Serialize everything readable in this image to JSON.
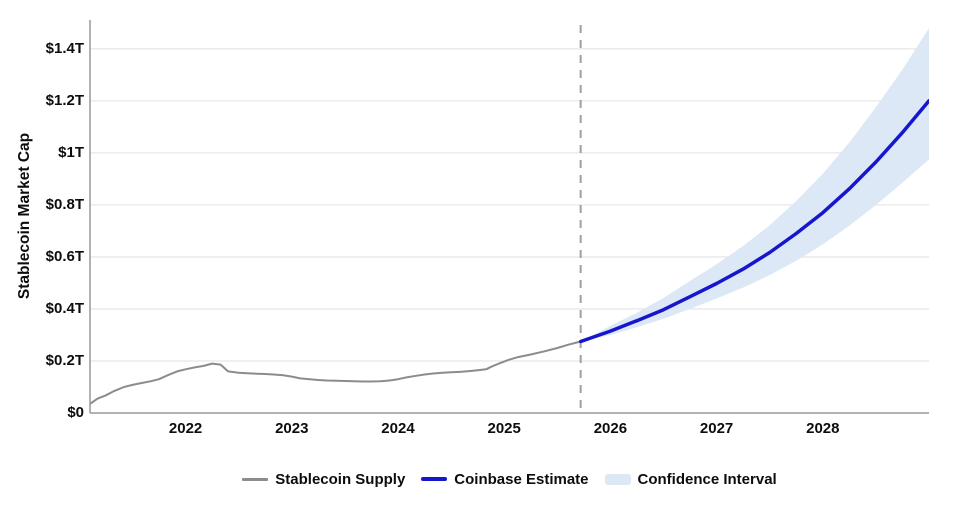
{
  "chart_data": {
    "type": "line",
    "title": "",
    "xlabel": "",
    "ylabel": "Stablecoin Market Cap",
    "units": "trillions USD",
    "grid": true,
    "legend_position": "bottom",
    "x_range": [
      2021.1,
      2029.0
    ],
    "y_range": [
      0,
      1.53
    ],
    "forecast_divider_x": 2025.72,
    "x_ticks": [
      {
        "value": 2022,
        "label": "2022"
      },
      {
        "value": 2023,
        "label": "2023"
      },
      {
        "value": 2024,
        "label": "2024"
      },
      {
        "value": 2025,
        "label": "2025"
      },
      {
        "value": 2026,
        "label": "2026"
      },
      {
        "value": 2027,
        "label": "2027"
      },
      {
        "value": 2028,
        "label": "2028"
      }
    ],
    "y_ticks": [
      {
        "value": 0.0,
        "label": "$0"
      },
      {
        "value": 0.2,
        "label": "$0.2T"
      },
      {
        "value": 0.4,
        "label": "$0.4T"
      },
      {
        "value": 0.6,
        "label": "$0.6T"
      },
      {
        "value": 0.8,
        "label": "$0.8T"
      },
      {
        "value": 1.0,
        "label": "$1T"
      },
      {
        "value": 1.2,
        "label": "$1.2T"
      },
      {
        "value": 1.4,
        "label": "$1.4T"
      }
    ],
    "series": [
      {
        "name": "Stablecoin Supply",
        "kind": "history-line",
        "color": "#8c8c8c",
        "width": 2,
        "x": [
          2021.1,
          2021.17,
          2021.25,
          2021.33,
          2021.42,
          2021.5,
          2021.58,
          2021.67,
          2021.75,
          2021.83,
          2021.92,
          2022.0,
          2022.08,
          2022.17,
          2022.25,
          2022.33,
          2022.4,
          2022.5,
          2022.58,
          2022.67,
          2022.75,
          2022.83,
          2022.92,
          2023.0,
          2023.08,
          2023.17,
          2023.25,
          2023.33,
          2023.42,
          2023.5,
          2023.58,
          2023.67,
          2023.75,
          2023.83,
          2023.92,
          2024.0,
          2024.08,
          2024.17,
          2024.25,
          2024.33,
          2024.42,
          2024.5,
          2024.58,
          2024.67,
          2024.75,
          2024.83,
          2024.88,
          2024.95,
          2025.04,
          2025.13,
          2025.25,
          2025.38,
          2025.5,
          2025.6,
          2025.72
        ],
        "y": [
          0.035,
          0.055,
          0.068,
          0.085,
          0.1,
          0.108,
          0.115,
          0.122,
          0.13,
          0.145,
          0.16,
          0.168,
          0.175,
          0.181,
          0.19,
          0.186,
          0.16,
          0.155,
          0.153,
          0.151,
          0.15,
          0.148,
          0.145,
          0.14,
          0.133,
          0.13,
          0.127,
          0.125,
          0.124,
          0.123,
          0.122,
          0.121,
          0.121,
          0.122,
          0.125,
          0.13,
          0.137,
          0.143,
          0.148,
          0.152,
          0.155,
          0.157,
          0.158,
          0.161,
          0.164,
          0.168,
          0.178,
          0.19,
          0.204,
          0.215,
          0.225,
          0.237,
          0.25,
          0.262,
          0.275
        ]
      },
      {
        "name": "Coinbase Estimate",
        "kind": "forecast-line",
        "color": "#1616cf",
        "width": 3.5,
        "x": [
          2025.72,
          2026.0,
          2026.25,
          2026.5,
          2026.75,
          2027.0,
          2027.25,
          2027.5,
          2027.75,
          2028.0,
          2028.25,
          2028.5,
          2028.75,
          2029.0
        ],
        "y": [
          0.275,
          0.315,
          0.355,
          0.397,
          0.447,
          0.498,
          0.553,
          0.617,
          0.69,
          0.77,
          0.862,
          0.965,
          1.078,
          1.2
        ]
      },
      {
        "name": "Confidence Interval",
        "kind": "band",
        "color": "#dce8f5",
        "x": [
          2025.72,
          2026.0,
          2026.25,
          2026.5,
          2026.75,
          2027.0,
          2027.25,
          2027.5,
          2027.75,
          2028.0,
          2028.25,
          2028.5,
          2028.75,
          2029.0
        ],
        "upper": [
          0.275,
          0.335,
          0.385,
          0.442,
          0.508,
          0.572,
          0.642,
          0.722,
          0.815,
          0.92,
          1.04,
          1.175,
          1.32,
          1.48
        ],
        "lower": [
          0.275,
          0.3,
          0.33,
          0.362,
          0.4,
          0.44,
          0.482,
          0.53,
          0.585,
          0.648,
          0.72,
          0.8,
          0.885,
          0.975
        ]
      }
    ],
    "legend": [
      {
        "label": "Stablecoin Supply",
        "swatch": "line-thin",
        "color": "#8c8c8c"
      },
      {
        "label": "Coinbase Estimate",
        "swatch": "line-thick",
        "color": "#1616cf"
      },
      {
        "label": "Confidence Interval",
        "swatch": "band",
        "color": "#dce8f5"
      }
    ],
    "style": {
      "gridline_color": "#e8e8e8",
      "axis_color": "#999999",
      "divider_color": "#a0a0a0",
      "background": "#ffffff",
      "text_color": "#0d0d0d"
    }
  }
}
